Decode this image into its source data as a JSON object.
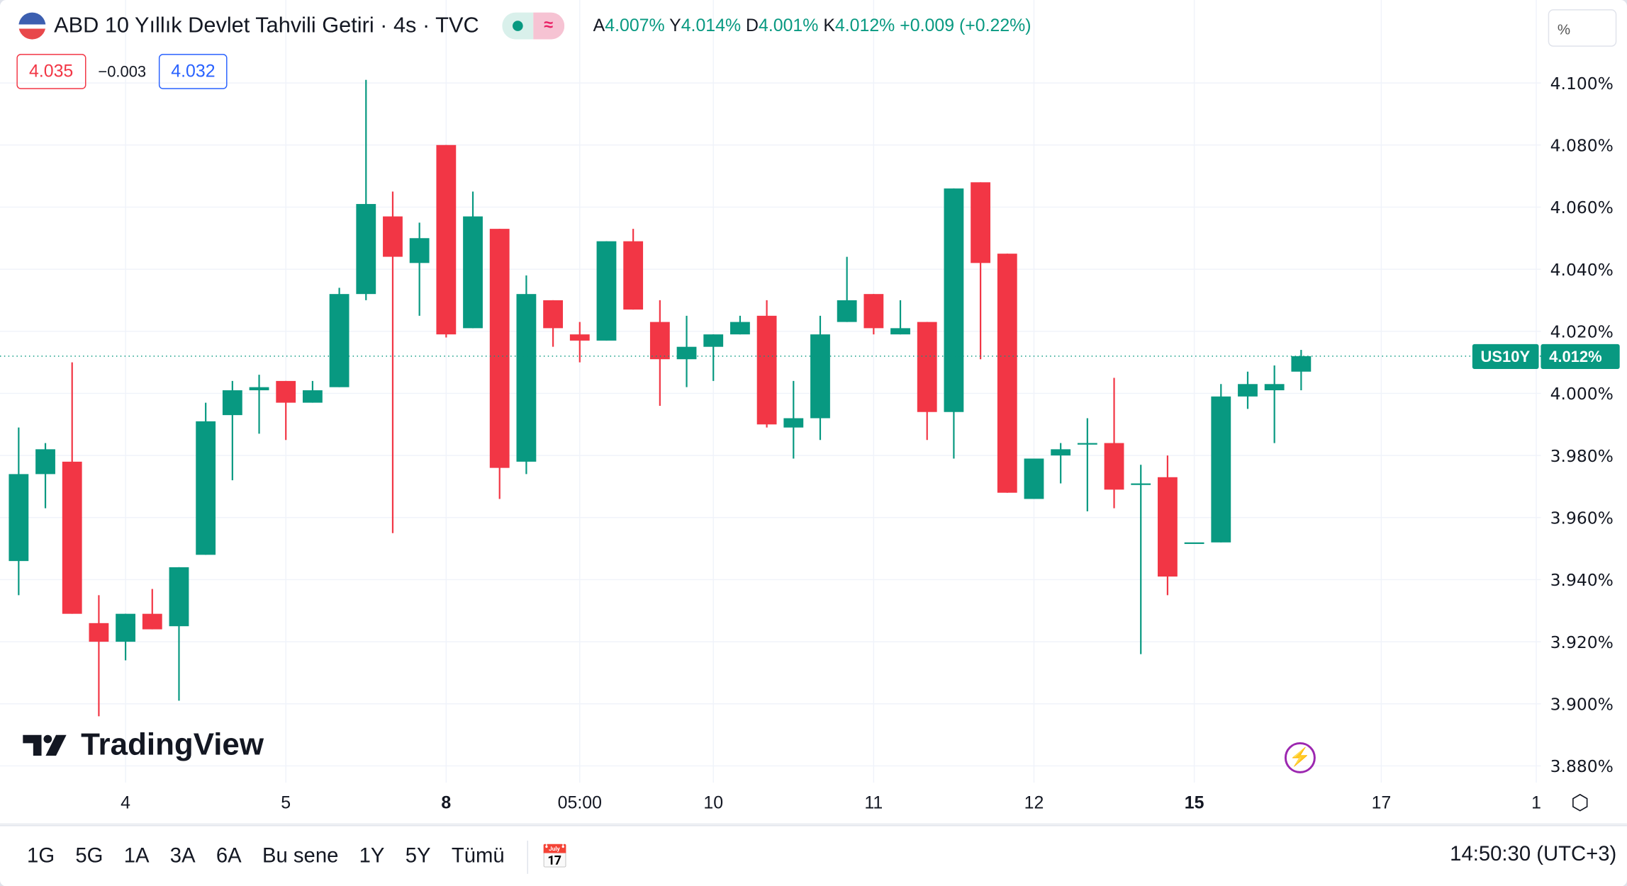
{
  "header": {
    "title": "ABD 10 Yıllık Devlet Tahvili Getiri · 4s · TVC",
    "flag_icon": "us-flag-icon",
    "status_dot": "market-open-dot",
    "delay_icon": "≈",
    "ohlc": [
      {
        "k": "A",
        "v": "4.007%"
      },
      {
        "k": "Y",
        "v": "4.014%"
      },
      {
        "k": "D",
        "v": "4.001%"
      },
      {
        "k": "K",
        "v": "4.012%"
      }
    ],
    "change": "+0.009 (+0.22%)"
  },
  "quote": {
    "sell": "4.035",
    "spread": "−0.003",
    "buy": "4.032"
  },
  "scale_button": "%",
  "last_price": {
    "symbol": "US10Y",
    "value": "4.012%"
  },
  "logo": "TradingView",
  "toolbar": {
    "ranges": [
      "1G",
      "5G",
      "1A",
      "3A",
      "6A",
      "Bu sene",
      "1Y",
      "5Y",
      "Tümü"
    ],
    "time": "14:50:30 (UTC+3)"
  },
  "colors": {
    "up": "#089981",
    "down": "#f23645",
    "accent": "#2962ff"
  },
  "chart_data": {
    "type": "candlestick",
    "ylim": [
      3.875,
      4.107
    ],
    "y_ticks": [
      "4.100%",
      "4.080%",
      "4.060%",
      "4.040%",
      "4.020%",
      "4.000%",
      "3.980%",
      "3.960%",
      "3.940%",
      "3.920%",
      "3.900%",
      "3.880%"
    ],
    "y_tick_values": [
      4.1,
      4.08,
      4.06,
      4.04,
      4.02,
      4.0,
      3.98,
      3.96,
      3.94,
      3.92,
      3.9,
      3.88
    ],
    "x_labels": [
      {
        "label": "4",
        "bar": 4,
        "bold": false
      },
      {
        "label": "5",
        "bar": 10,
        "bold": false
      },
      {
        "label": "8",
        "bar": 16,
        "bold": true
      },
      {
        "label": "05:00",
        "bar": 21,
        "bold": false
      },
      {
        "label": "10",
        "bar": 26,
        "bold": false
      },
      {
        "label": "11",
        "bar": 32,
        "bold": false
      },
      {
        "label": "12",
        "bar": 38,
        "bold": false
      },
      {
        "label": "15",
        "bar": 44,
        "bold": true
      },
      {
        "label": "17",
        "bar": 51,
        "bold": false
      },
      {
        "label": "1",
        "bar": 56.8,
        "bold": false
      }
    ],
    "ohlc": [
      [
        3.946,
        3.989,
        3.935,
        3.974
      ],
      [
        3.974,
        3.984,
        3.963,
        3.982
      ],
      [
        3.978,
        4.01,
        3.929,
        3.929
      ],
      [
        3.926,
        3.935,
        3.896,
        3.92
      ],
      [
        3.92,
        3.929,
        3.914,
        3.929
      ],
      [
        3.929,
        3.937,
        3.924,
        3.924
      ],
      [
        3.925,
        3.944,
        3.901,
        3.944
      ],
      [
        3.948,
        3.997,
        3.948,
        3.991
      ],
      [
        3.993,
        4.004,
        3.972,
        4.001
      ],
      [
        4.001,
        4.006,
        3.987,
        4.002
      ],
      [
        4.004,
        4.004,
        3.985,
        3.997
      ],
      [
        3.997,
        4.004,
        3.997,
        4.001
      ],
      [
        4.002,
        4.034,
        4.002,
        4.032
      ],
      [
        4.032,
        4.101,
        4.03,
        4.061
      ],
      [
        4.057,
        4.065,
        3.955,
        4.044
      ],
      [
        4.042,
        4.055,
        4.025,
        4.05
      ],
      [
        4.08,
        4.08,
        4.018,
        4.019
      ],
      [
        4.021,
        4.065,
        4.021,
        4.057
      ],
      [
        4.053,
        4.053,
        3.966,
        3.976
      ],
      [
        3.978,
        4.038,
        3.974,
        4.032
      ],
      [
        4.03,
        4.03,
        4.015,
        4.021
      ],
      [
        4.019,
        4.023,
        4.01,
        4.017
      ],
      [
        4.017,
        4.049,
        4.017,
        4.049
      ],
      [
        4.049,
        4.053,
        4.027,
        4.027
      ],
      [
        4.023,
        4.03,
        3.996,
        4.011
      ],
      [
        4.011,
        4.025,
        4.002,
        4.015
      ],
      [
        4.015,
        4.019,
        4.004,
        4.019
      ],
      [
        4.019,
        4.025,
        4.019,
        4.023
      ],
      [
        4.025,
        4.03,
        3.989,
        3.99
      ],
      [
        3.989,
        4.004,
        3.979,
        3.992
      ],
      [
        3.992,
        4.025,
        3.985,
        4.019
      ],
      [
        4.023,
        4.044,
        4.023,
        4.03
      ],
      [
        4.032,
        4.032,
        4.019,
        4.021
      ],
      [
        4.019,
        4.03,
        4.019,
        4.021
      ],
      [
        4.023,
        4.023,
        3.985,
        3.994
      ],
      [
        3.994,
        4.066,
        3.979,
        4.066
      ],
      [
        4.068,
        4.068,
        4.011,
        4.042
      ],
      [
        4.045,
        4.045,
        3.968,
        3.968
      ],
      [
        3.966,
        3.979,
        3.966,
        3.979
      ],
      [
        3.98,
        3.984,
        3.971,
        3.982
      ],
      [
        3.984,
        3.992,
        3.962,
        3.984
      ],
      [
        3.984,
        4.005,
        3.963,
        3.969
      ],
      [
        3.971,
        3.977,
        3.916,
        3.971
      ],
      [
        3.973,
        3.98,
        3.935,
        3.941
      ],
      [
        3.952,
        3.952,
        3.952,
        3.952
      ],
      [
        3.952,
        4.003,
        3.952,
        3.999
      ],
      [
        3.999,
        4.007,
        3.995,
        4.003
      ],
      [
        4.001,
        4.009,
        3.984,
        4.003
      ],
      [
        4.007,
        4.014,
        4.001,
        4.012
      ]
    ]
  }
}
